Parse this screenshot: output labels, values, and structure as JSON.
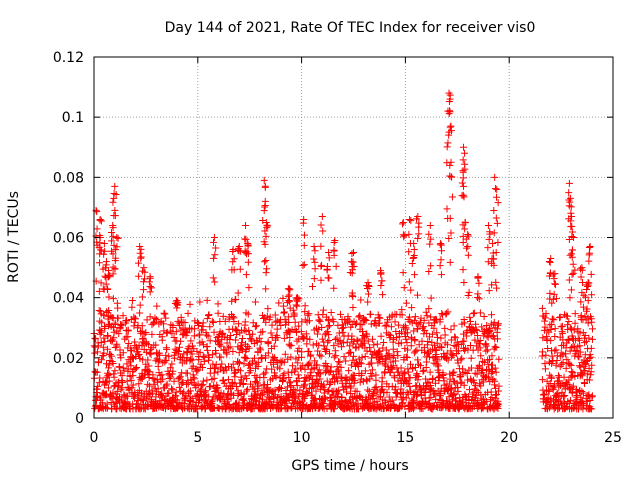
{
  "chart_data": {
    "type": "scatter",
    "title": "Day 144 of 2021, Rate Of TEC Index for receiver vis0",
    "xlabel": "GPS time / hours",
    "ylabel": "ROTI / TECUs",
    "xlim": [
      0,
      25
    ],
    "ylim": [
      0,
      0.12
    ],
    "grid": true,
    "marker": "+",
    "color": "#ff0000",
    "x_ticks": [
      0,
      5,
      10,
      15,
      20,
      25
    ],
    "x_tick_labels": [
      "0",
      "5",
      "10",
      "15",
      "20",
      "25"
    ],
    "y_ticks": [
      0,
      0.02,
      0.04,
      0.06,
      0.08,
      0.1,
      0.12
    ],
    "y_tick_labels": [
      "0",
      "0.02",
      "0.04",
      "0.06",
      "0.08",
      "0.1",
      "0.12"
    ],
    "coverage_hours": [
      [
        0,
        19.5
      ],
      [
        21.6,
        24
      ]
    ],
    "series": [
      {
        "name": "vis0",
        "notable_points": [
          {
            "x": 0.1,
            "y": 0.069
          },
          {
            "x": 0.3,
            "y": 0.066
          },
          {
            "x": 0.3,
            "y": 0.06
          },
          {
            "x": 0.5,
            "y": 0.058
          },
          {
            "x": 0.6,
            "y": 0.052
          },
          {
            "x": 0.7,
            "y": 0.049
          },
          {
            "x": 1.0,
            "y": 0.077
          },
          {
            "x": 0.95,
            "y": 0.073
          },
          {
            "x": 0.9,
            "y": 0.064
          },
          {
            "x": 1.1,
            "y": 0.06
          },
          {
            "x": 2.2,
            "y": 0.057
          },
          {
            "x": 2.4,
            "y": 0.05
          },
          {
            "x": 2.7,
            "y": 0.047
          },
          {
            "x": 4.0,
            "y": 0.039
          },
          {
            "x": 5.8,
            "y": 0.06
          },
          {
            "x": 6.7,
            "y": 0.056
          },
          {
            "x": 7.0,
            "y": 0.057
          },
          {
            "x": 7.3,
            "y": 0.064
          },
          {
            "x": 7.4,
            "y": 0.058
          },
          {
            "x": 8.2,
            "y": 0.079
          },
          {
            "x": 8.25,
            "y": 0.072
          },
          {
            "x": 8.3,
            "y": 0.065
          },
          {
            "x": 9.4,
            "y": 0.043
          },
          {
            "x": 9.8,
            "y": 0.04
          },
          {
            "x": 10.1,
            "y": 0.066
          },
          {
            "x": 10.6,
            "y": 0.057
          },
          {
            "x": 11.0,
            "y": 0.067
          },
          {
            "x": 11.3,
            "y": 0.055
          },
          {
            "x": 11.6,
            "y": 0.059
          },
          {
            "x": 12.4,
            "y": 0.052
          },
          {
            "x": 12.5,
            "y": 0.055
          },
          {
            "x": 13.2,
            "y": 0.045
          },
          {
            "x": 13.8,
            "y": 0.049
          },
          {
            "x": 14.9,
            "y": 0.065
          },
          {
            "x": 15.2,
            "y": 0.066
          },
          {
            "x": 15.4,
            "y": 0.058
          },
          {
            "x": 15.6,
            "y": 0.067
          },
          {
            "x": 16.2,
            "y": 0.064
          },
          {
            "x": 16.7,
            "y": 0.058
          },
          {
            "x": 17.1,
            "y": 0.108
          },
          {
            "x": 17.15,
            "y": 0.106
          },
          {
            "x": 17.05,
            "y": 0.102
          },
          {
            "x": 17.2,
            "y": 0.085
          },
          {
            "x": 17.8,
            "y": 0.09
          },
          {
            "x": 17.85,
            "y": 0.088
          },
          {
            "x": 17.8,
            "y": 0.077
          },
          {
            "x": 18.0,
            "y": 0.061
          },
          {
            "x": 18.5,
            "y": 0.047
          },
          {
            "x": 19.0,
            "y": 0.064
          },
          {
            "x": 19.2,
            "y": 0.058
          },
          {
            "x": 19.3,
            "y": 0.08
          },
          {
            "x": 19.4,
            "y": 0.076
          },
          {
            "x": 22.0,
            "y": 0.053
          },
          {
            "x": 22.2,
            "y": 0.048
          },
          {
            "x": 22.9,
            "y": 0.078
          },
          {
            "x": 22.95,
            "y": 0.073
          },
          {
            "x": 23.0,
            "y": 0.067
          },
          {
            "x": 23.1,
            "y": 0.06
          },
          {
            "x": 23.5,
            "y": 0.05
          },
          {
            "x": 23.9,
            "y": 0.057
          },
          {
            "x": 23.8,
            "y": 0.045
          }
        ],
        "dense_band_y": [
          0.003,
          0.035
        ]
      }
    ]
  }
}
